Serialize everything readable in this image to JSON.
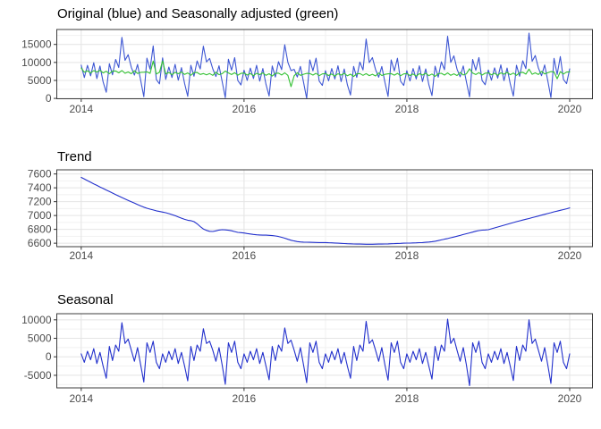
{
  "page": {
    "background": "#ffffff",
    "description": "Three stacked time-series panels of a seasonal decomposition (weekly data, 2014-2020)"
  },
  "chart_data": {
    "type": "line",
    "kind": "seasonal-decomposition",
    "x": {
      "start": 2014.0,
      "step_years": 0.0384615,
      "n": 157,
      "unit": "year"
    },
    "x_axis": {
      "major_ticks": [
        2014,
        2016,
        2018,
        2020
      ],
      "minor_ticks": [
        2015,
        2017,
        2019
      ],
      "lim": [
        2013.7,
        2020.28
      ]
    },
    "style": {
      "grid_major": "#e4e4e4",
      "grid_minor": "#f1f1f1",
      "panel_border": "#3c3c3c",
      "tick_color": "#333333",
      "axis_text": "#4d4d4d",
      "title_color": "#000000",
      "blue": "#3d56d3",
      "green": "#33c133"
    },
    "decomposition": {
      "note": "Original = trend + seasonal + remainder; Seasonally adjusted = trend + remainder",
      "trend": [
        7550,
        7527,
        7504,
        7481,
        7458,
        7435,
        7412,
        7390,
        7368,
        7346,
        7324,
        7302,
        7281,
        7260,
        7239,
        7218,
        7198,
        7178,
        7158,
        7139,
        7120,
        7105,
        7092,
        7080,
        7068,
        7058,
        7050,
        7040,
        7028,
        7014,
        6998,
        6980,
        6962,
        6945,
        6932,
        6925,
        6912,
        6880,
        6840,
        6805,
        6785,
        6772,
        6770,
        6778,
        6790,
        6795,
        6793,
        6788,
        6780,
        6768,
        6757,
        6752,
        6748,
        6740,
        6733,
        6727,
        6722,
        6719,
        6717,
        6716,
        6714,
        6710,
        6705,
        6697,
        6686,
        6672,
        6657,
        6643,
        6632,
        6624,
        6619,
        6616,
        6614,
        6613,
        6612,
        6611,
        6610,
        6610,
        6609,
        6607,
        6605,
        6603,
        6600,
        6598,
        6595,
        6593,
        6591,
        6589,
        6588,
        6587,
        6586,
        6585,
        6585,
        6585,
        6586,
        6587,
        6588,
        6589,
        6590,
        6592,
        6594,
        6596,
        6598,
        6600,
        6601,
        6602,
        6604,
        6606,
        6608,
        6610,
        6613,
        6617,
        6622,
        6629,
        6638,
        6648,
        6658,
        6668,
        6679,
        6690,
        6701,
        6713,
        6725,
        6737,
        6749,
        6761,
        6773,
        6782,
        6789,
        6792,
        6795,
        6808,
        6821,
        6834,
        6847,
        6860,
        6873,
        6886,
        6898,
        6911,
        6923,
        6935,
        6946,
        6957,
        6969,
        6981,
        6993,
        7005,
        7017,
        7029,
        7041,
        7053,
        7064,
        7075,
        7086,
        7097,
        7110
      ],
      "seasonal": [
        800,
        -1500,
        1500,
        -800,
        2200,
        -1800,
        1200,
        -2500,
        -5800,
        2800,
        -1000,
        3200,
        1500,
        9200,
        3600,
        4800,
        1800,
        -1200,
        2500,
        -2200,
        -6800,
        3800,
        1200,
        4200,
        -1500,
        -3200,
        800,
        -1500,
        1500,
        -800,
        2200,
        -1800,
        1200,
        -2500,
        -6500,
        2800,
        -1000,
        3200,
        1500,
        7600,
        3600,
        4200,
        1800,
        -1200,
        2500,
        -2200,
        -7400,
        3800,
        1200,
        4200,
        -1500,
        -3200,
        800,
        -1500,
        1500,
        -800,
        2200,
        -1800,
        1200,
        -2500,
        -6200,
        2800,
        -1000,
        3200,
        1500,
        7800,
        3600,
        4500,
        1800,
        -1200,
        2500,
        -2200,
        -7000,
        3800,
        1200,
        4200,
        -1500,
        -3200,
        800,
        -1500,
        1500,
        -800,
        2200,
        -1800,
        1200,
        -2500,
        -5800,
        2800,
        -1000,
        3200,
        1500,
        9600,
        3600,
        4600,
        1800,
        -1200,
        2500,
        -2200,
        -6300,
        3800,
        1200,
        4200,
        -1500,
        -3200,
        800,
        -1500,
        1500,
        -800,
        2200,
        -1800,
        1200,
        -2500,
        -6000,
        2800,
        -1000,
        3200,
        1500,
        10200,
        3600,
        5000,
        1800,
        -1200,
        2500,
        -2200,
        -7800,
        3800,
        1200,
        4200,
        -1500,
        -3200,
        800,
        -1500,
        1500,
        -800,
        2200,
        -1800,
        1200,
        -2500,
        -6400,
        2800,
        -1000,
        3200,
        1500,
        10000,
        3600,
        4800,
        1800,
        -1200,
        2500,
        -2200,
        -7200,
        3800,
        1200,
        4200,
        -1500,
        -3200,
        800
      ],
      "remainder": [
        900,
        -250,
        180,
        -420,
        260,
        -120,
        380,
        -300,
        150,
        -500,
        240,
        320,
        -180,
        500,
        -260,
        130,
        -350,
        500,
        -220,
        90,
        150,
        280,
        -140,
        3300,
        -300,
        200,
        3400,
        -250,
        180,
        -420,
        260,
        -120,
        380,
        -300,
        150,
        -500,
        240,
        320,
        -180,
        100,
        -260,
        130,
        -350,
        500,
        -220,
        90,
        800,
        280,
        -140,
        360,
        -300,
        200,
        300,
        -250,
        180,
        -420,
        260,
        -120,
        380,
        -300,
        150,
        -500,
        240,
        320,
        -180,
        420,
        -260,
        -3400,
        -350,
        500,
        -220,
        90,
        350,
        280,
        -140,
        360,
        -300,
        200,
        300,
        -250,
        180,
        -420,
        260,
        -120,
        380,
        -300,
        150,
        -500,
        240,
        320,
        -180,
        300,
        -260,
        130,
        -350,
        500,
        -220,
        90,
        250,
        280,
        -140,
        360,
        -300,
        200,
        300,
        -250,
        180,
        -420,
        260,
        -120,
        380,
        -300,
        150,
        -500,
        240,
        320,
        -180,
        400,
        -260,
        130,
        -350,
        500,
        -220,
        90,
        1500,
        280,
        -140,
        360,
        -300,
        200,
        300,
        -250,
        180,
        -420,
        260,
        -120,
        380,
        -300,
        150,
        -500,
        240,
        320,
        -180,
        1200,
        -260,
        130,
        -350,
        500,
        -220,
        90,
        400,
        280,
        -1600,
        360,
        -300,
        200,
        300
      ]
    },
    "panels": [
      {
        "id": "original",
        "title": "Original (blue) and Seasonally adjusted (green)",
        "y_axis": {
          "major_ticks": [
            0,
            5000,
            10000,
            15000
          ],
          "minor_ticks": [
            2500,
            7500,
            12500,
            17500
          ],
          "lim": [
            -100,
            19150
          ]
        },
        "series": [
          {
            "name": "Original",
            "color": "#3d56d3",
            "compose": [
              "trend",
              "seasonal",
              "remainder"
            ]
          },
          {
            "name": "Seasonally adjusted",
            "color": "#33c133",
            "compose": [
              "trend",
              "remainder"
            ]
          }
        ]
      },
      {
        "id": "trend",
        "title": "Trend",
        "y_axis": {
          "major_ticks": [
            6600,
            6800,
            7000,
            7200,
            7400,
            7600
          ],
          "minor_ticks": [
            6700,
            6900,
            7100,
            7300,
            7500
          ],
          "lim": [
            6550,
            7660
          ]
        },
        "series": [
          {
            "name": "Trend",
            "color": "#2230cc",
            "compose": [
              "trend"
            ]
          }
        ]
      },
      {
        "id": "seasonal",
        "title": "Seasonal",
        "y_axis": {
          "major_ticks": [
            -5000,
            0,
            5000,
            10000
          ],
          "minor_ticks": [
            -7500,
            -2500,
            2500,
            7500
          ],
          "lim": [
            -8400,
            11650
          ]
        },
        "series": [
          {
            "name": "Seasonal",
            "color": "#2230cc",
            "compose": [
              "seasonal"
            ]
          }
        ]
      }
    ]
  }
}
